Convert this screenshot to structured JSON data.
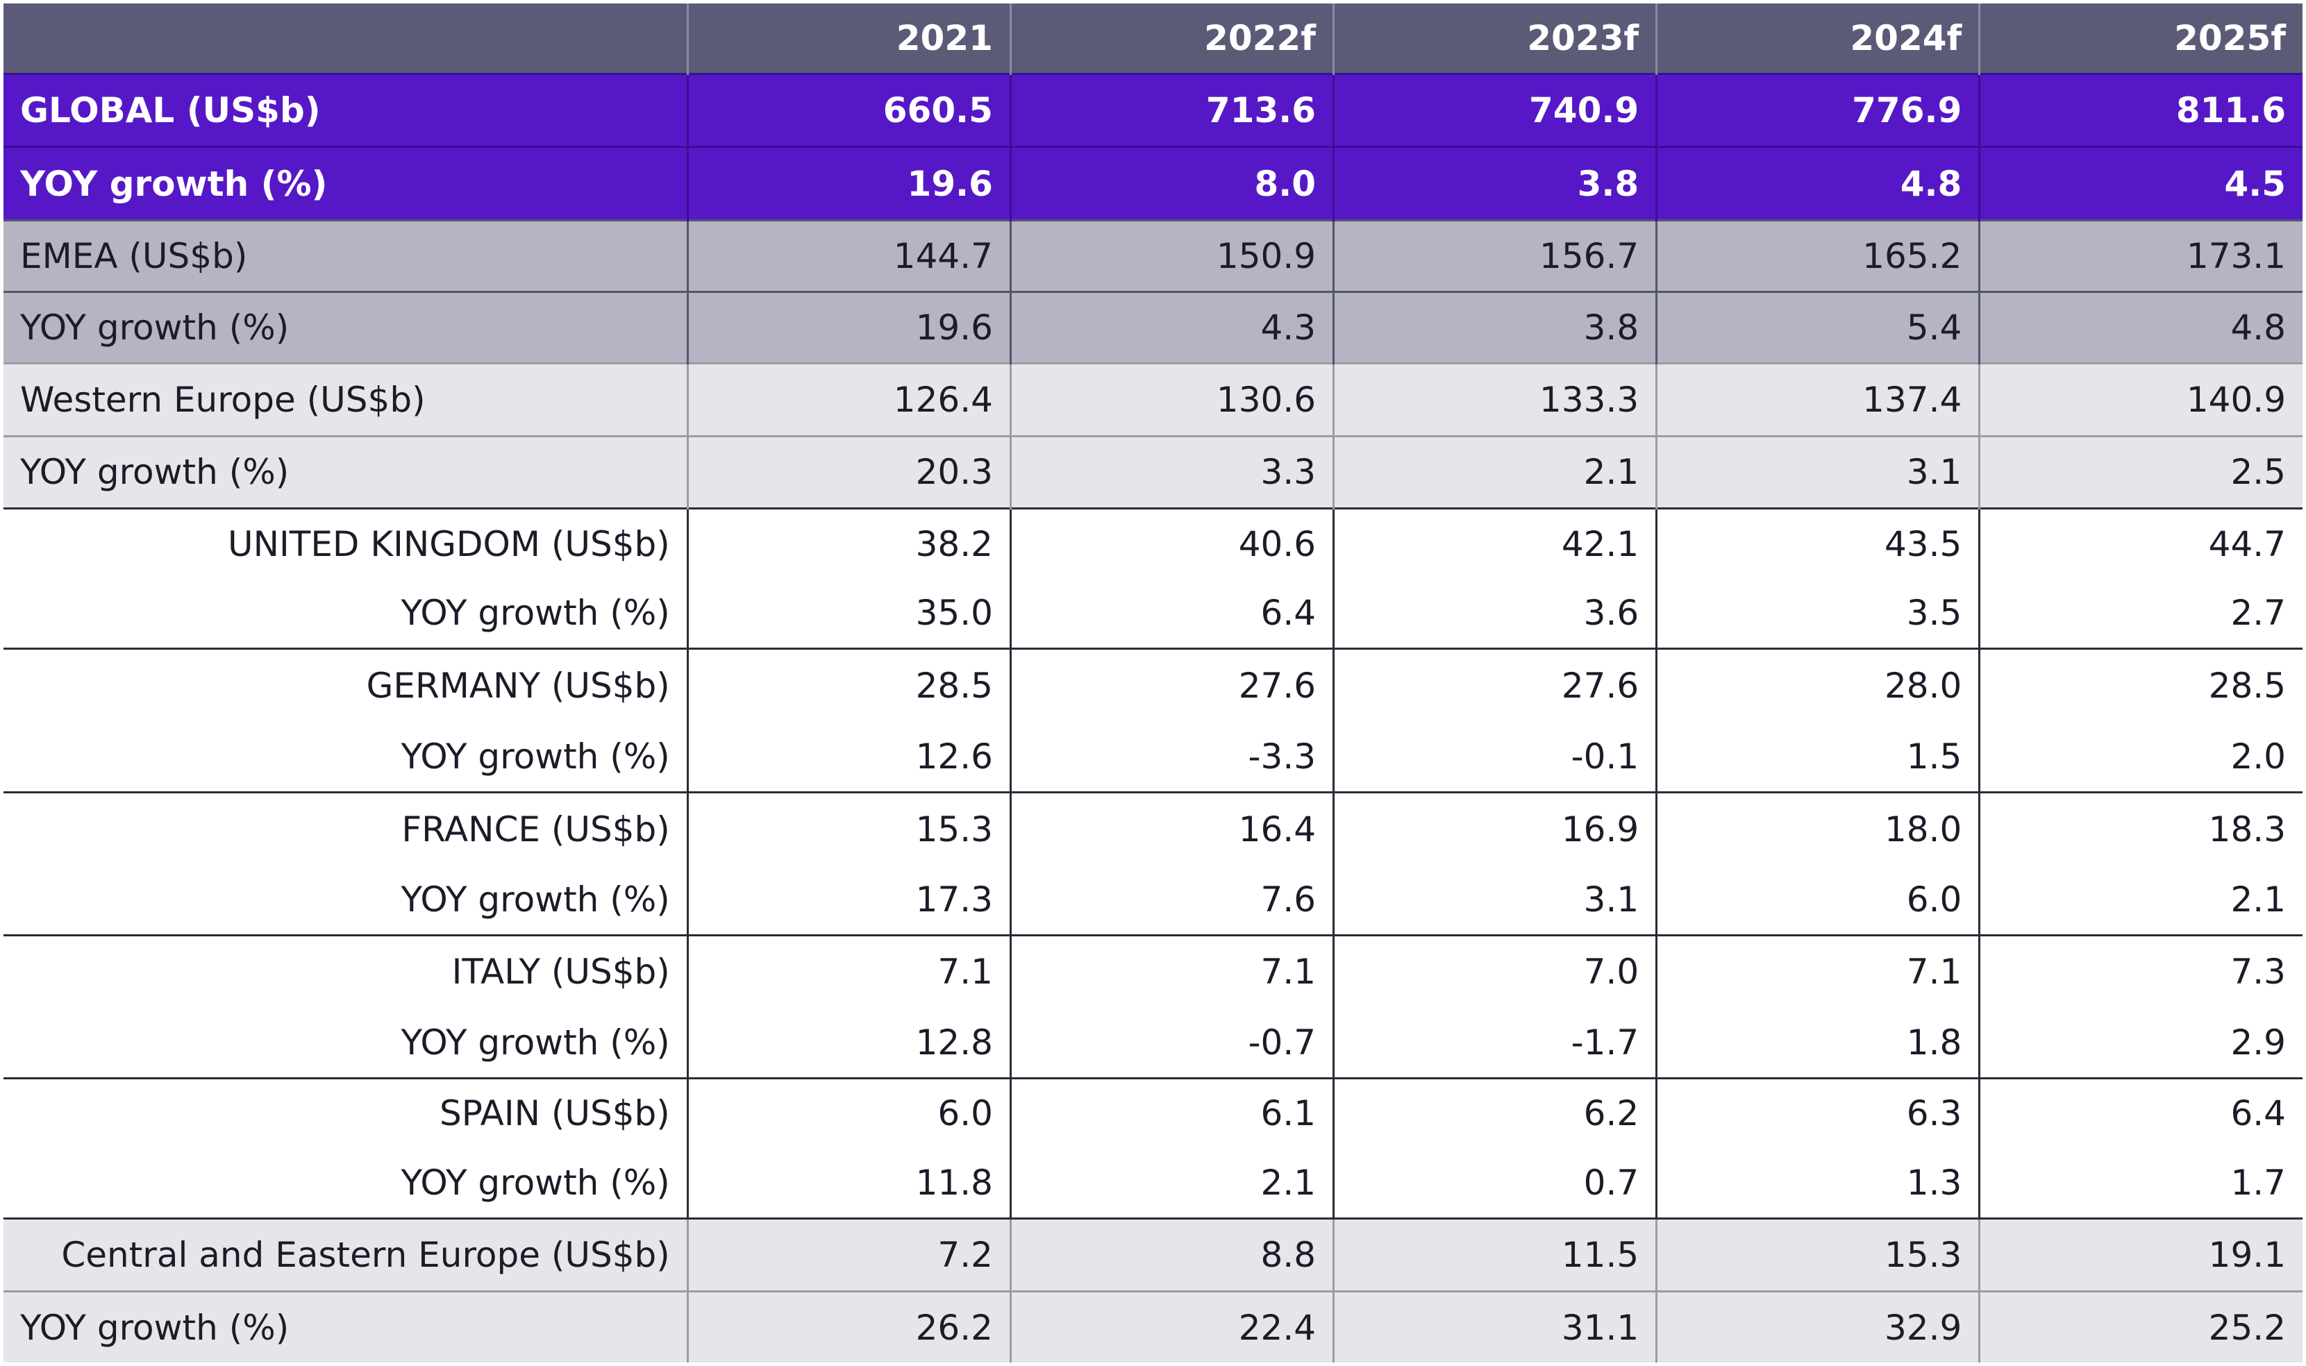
{
  "table": {
    "columns": [
      "",
      "2021",
      "2022f",
      "2023f",
      "2024f",
      "2025f"
    ],
    "rows": [
      {
        "label": "GLOBAL (US$b)",
        "values": [
          "660.5",
          "713.6",
          "740.9",
          "776.9",
          "811.6"
        ]
      },
      {
        "label": "YOY growth (%)",
        "values": [
          "19.6",
          "8.0",
          "3.8",
          "4.8",
          "4.5"
        ]
      },
      {
        "label": "EMEA (US$b)",
        "values": [
          "144.7",
          "150.9",
          "156.7",
          "165.2",
          "173.1"
        ]
      },
      {
        "label": "YOY growth (%)",
        "values": [
          "19.6",
          "4.3",
          "3.8",
          "5.4",
          "4.8"
        ]
      },
      {
        "label": "Western Europe (US$b)",
        "values": [
          "126.4",
          "130.6",
          "133.3",
          "137.4",
          "140.9"
        ]
      },
      {
        "label": "YOY growth (%)",
        "values": [
          "20.3",
          "3.3",
          "2.1",
          "3.1",
          "2.5"
        ]
      },
      {
        "label": "UNITED KINGDOM (US$b)",
        "values": [
          "38.2",
          "40.6",
          "42.1",
          "43.5",
          "44.7"
        ]
      },
      {
        "label": "YOY growth (%)",
        "values": [
          "35.0",
          "6.4",
          "3.6",
          "3.5",
          "2.7"
        ]
      },
      {
        "label": "GERMANY (US$b)",
        "values": [
          "28.5",
          "27.6",
          "27.6",
          "28.0",
          "28.5"
        ]
      },
      {
        "label": "YOY growth (%)",
        "values": [
          "12.6",
          "-3.3",
          "-0.1",
          "1.5",
          "2.0"
        ]
      },
      {
        "label": "FRANCE (US$b)",
        "values": [
          "15.3",
          "16.4",
          "16.9",
          "18.0",
          "18.3"
        ]
      },
      {
        "label": "YOY growth (%)",
        "values": [
          "17.3",
          "7.6",
          "3.1",
          "6.0",
          "2.1"
        ]
      },
      {
        "label": "ITALY (US$b)",
        "values": [
          "7.1",
          "7.1",
          "7.0",
          "7.1",
          "7.3"
        ]
      },
      {
        "label": "YOY growth (%)",
        "values": [
          "12.8",
          "-0.7",
          "-1.7",
          "1.8",
          "2.9"
        ]
      },
      {
        "label": "SPAIN (US$b)",
        "values": [
          "6.0",
          "6.1",
          "6.2",
          "6.3",
          "6.4"
        ]
      },
      {
        "label": "YOY growth (%)",
        "values": [
          "11.8",
          "2.1",
          "0.7",
          "1.3",
          "1.7"
        ]
      },
      {
        "label": "Central and Eastern Europe (US$b)",
        "values": [
          "7.2",
          "8.8",
          "11.5",
          "15.3",
          "19.1"
        ]
      },
      {
        "label": "YOY growth (%)",
        "values": [
          "26.2",
          "22.4",
          "31.1",
          "32.9",
          "25.2"
        ]
      }
    ]
  },
  "colors": {
    "header_bg": "#5b5b78",
    "global_bg": "#5618c7",
    "region_bg": "#b5b4c2",
    "subregion_bg": "#e6e6ea",
    "country_bg": "#ffffff"
  }
}
